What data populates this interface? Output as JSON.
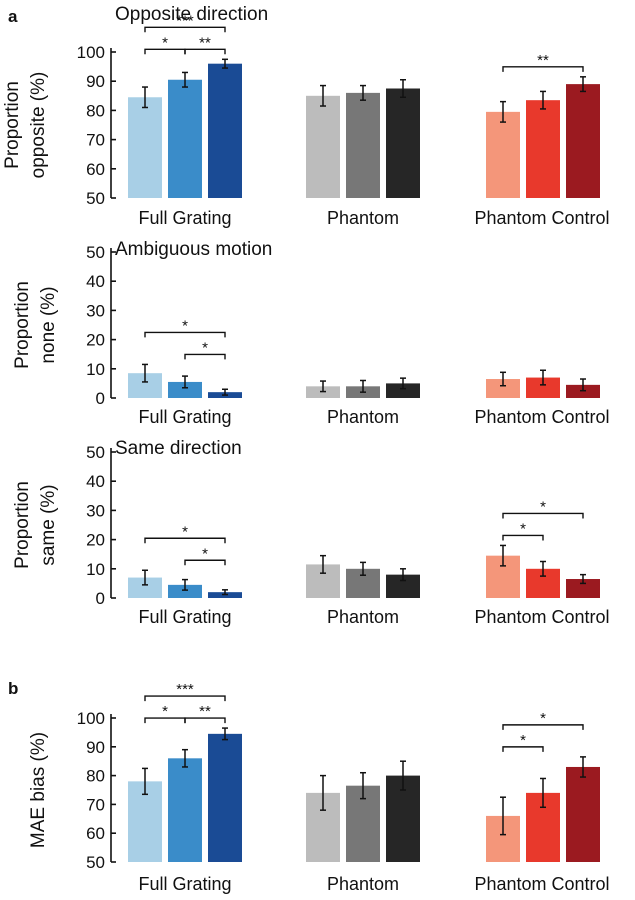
{
  "colors": {
    "full_grating": [
      "#a8cfe6",
      "#3a8cc9",
      "#1a4b95"
    ],
    "phantom": [
      "#bcbcbc",
      "#777777",
      "#262626"
    ],
    "phantom_control": [
      "#f4967a",
      "#e8392c",
      "#9b1a20"
    ]
  },
  "chart_data": [
    {
      "type": "bar",
      "panel": "a",
      "title": "Opposite direction",
      "ylabel": [
        "Proportion",
        "opposite (%)"
      ],
      "ylim": [
        50,
        100
      ],
      "yticks": [
        50,
        60,
        70,
        80,
        90,
        100
      ],
      "categories": [
        "Full Grating",
        "Phantom",
        "Phantom Control"
      ],
      "values": [
        [
          84.5,
          90.5,
          96.0
        ],
        [
          85.0,
          86.0,
          87.5
        ],
        [
          79.5,
          83.5,
          89.0
        ]
      ],
      "errors": [
        [
          3.5,
          2.5,
          1.5
        ],
        [
          3.5,
          2.5,
          3.0
        ],
        [
          3.5,
          3.0,
          2.5
        ]
      ],
      "significance": [
        {
          "group": 0,
          "from": 0,
          "to": 1,
          "label": "*"
        },
        {
          "group": 0,
          "from": 1,
          "to": 2,
          "label": "**"
        },
        {
          "group": 0,
          "from": 0,
          "to": 2,
          "label": "***"
        },
        {
          "group": 2,
          "from": 0,
          "to": 2,
          "label": "**"
        }
      ]
    },
    {
      "type": "bar",
      "panel": "",
      "title": "Ambiguous motion",
      "ylabel": [
        "Proportion",
        "none (%)"
      ],
      "ylim": [
        0,
        50
      ],
      "yticks": [
        0,
        10,
        20,
        30,
        40,
        50
      ],
      "categories": [
        "Full Grating",
        "Phantom",
        "Phantom Control"
      ],
      "values": [
        [
          8.5,
          5.5,
          2.0
        ],
        [
          4.0,
          4.0,
          5.0
        ],
        [
          6.5,
          7.0,
          4.5
        ]
      ],
      "errors": [
        [
          3.0,
          2.0,
          1.0
        ],
        [
          1.8,
          2.0,
          1.8
        ],
        [
          2.3,
          2.5,
          2.0
        ]
      ],
      "significance": [
        {
          "group": 0,
          "from": 1,
          "to": 2,
          "label": "*"
        },
        {
          "group": 0,
          "from": 0,
          "to": 2,
          "label": "*"
        }
      ]
    },
    {
      "type": "bar",
      "panel": "",
      "title": "Same direction",
      "ylabel": [
        "Proportion",
        "same (%)"
      ],
      "ylim": [
        0,
        50
      ],
      "yticks": [
        0,
        10,
        20,
        30,
        40,
        50
      ],
      "categories": [
        "Full Grating",
        "Phantom",
        "Phantom Control"
      ],
      "values": [
        [
          7.0,
          4.5,
          2.0
        ],
        [
          11.5,
          10.0,
          8.0
        ],
        [
          14.5,
          10.0,
          6.5
        ]
      ],
      "errors": [
        [
          2.5,
          1.8,
          0.8
        ],
        [
          3.0,
          2.2,
          2.0
        ],
        [
          3.5,
          2.5,
          1.5
        ]
      ],
      "significance": [
        {
          "group": 0,
          "from": 1,
          "to": 2,
          "label": "*"
        },
        {
          "group": 0,
          "from": 0,
          "to": 2,
          "label": "*"
        },
        {
          "group": 2,
          "from": 0,
          "to": 1,
          "label": "*"
        },
        {
          "group": 2,
          "from": 0,
          "to": 2,
          "label": "*"
        }
      ]
    },
    {
      "type": "bar",
      "panel": "b",
      "title": "",
      "ylabel": [
        "MAE bias (%)"
      ],
      "ylim": [
        50,
        100
      ],
      "yticks": [
        50,
        60,
        70,
        80,
        90,
        100
      ],
      "categories": [
        "Full Grating",
        "Phantom",
        "Phantom Control"
      ],
      "values": [
        [
          78.0,
          86.0,
          94.5
        ],
        [
          74.0,
          76.5,
          80.0
        ],
        [
          66.0,
          74.0,
          83.0
        ]
      ],
      "errors": [
        [
          4.5,
          3.0,
          2.0
        ],
        [
          6.0,
          4.5,
          5.0
        ],
        [
          6.5,
          5.0,
          3.5
        ]
      ],
      "significance": [
        {
          "group": 0,
          "from": 0,
          "to": 1,
          "label": "*"
        },
        {
          "group": 0,
          "from": 1,
          "to": 2,
          "label": "**"
        },
        {
          "group": 0,
          "from": 0,
          "to": 2,
          "label": "***"
        },
        {
          "group": 2,
          "from": 0,
          "to": 1,
          "label": "*"
        },
        {
          "group": 2,
          "from": 0,
          "to": 2,
          "label": "*"
        }
      ]
    }
  ]
}
